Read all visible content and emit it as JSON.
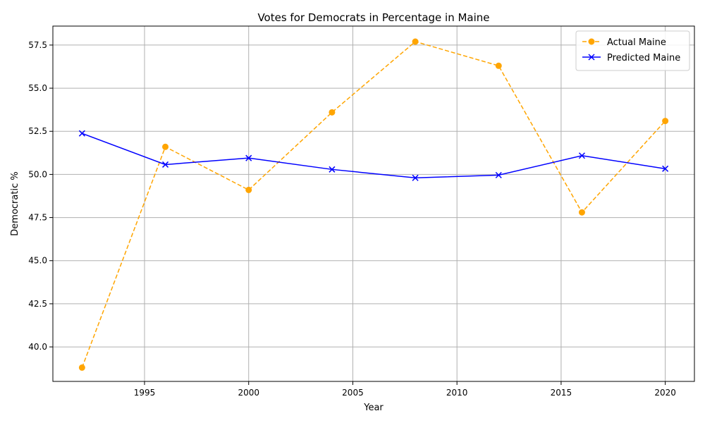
{
  "chart_data": {
    "type": "line",
    "title": "Votes for Democrats in Percentage in Maine",
    "xlabel": "Year",
    "ylabel": "Democratic %",
    "xlim": [
      1990.6,
      2021.4
    ],
    "ylim": [
      38.0,
      58.6
    ],
    "xticks": [
      1995,
      2000,
      2005,
      2010,
      2015,
      2020
    ],
    "yticks": [
      40.0,
      42.5,
      45.0,
      47.5,
      50.0,
      52.5,
      55.0,
      57.5
    ],
    "xtick_labels": [
      "1995",
      "2000",
      "2005",
      "2010",
      "2015",
      "2020"
    ],
    "ytick_labels": [
      "40.0",
      "42.5",
      "45.0",
      "47.5",
      "50.0",
      "52.5",
      "55.0",
      "57.5"
    ],
    "grid": true,
    "legend_position": "top-right",
    "x": [
      1992,
      1996,
      2000,
      2004,
      2008,
      2012,
      2016,
      2020
    ],
    "series": [
      {
        "name": "Actual Maine",
        "color": "#FFA500",
        "line_style": "dashed",
        "marker": "circle",
        "values": [
          38.8,
          51.6,
          49.1,
          53.6,
          57.7,
          56.3,
          47.8,
          53.1
        ]
      },
      {
        "name": "Predicted Maine",
        "color": "#0000FF",
        "line_style": "solid",
        "marker": "x",
        "values": [
          52.38,
          50.57,
          50.95,
          50.29,
          49.8,
          49.96,
          51.09,
          50.33
        ]
      }
    ]
  }
}
